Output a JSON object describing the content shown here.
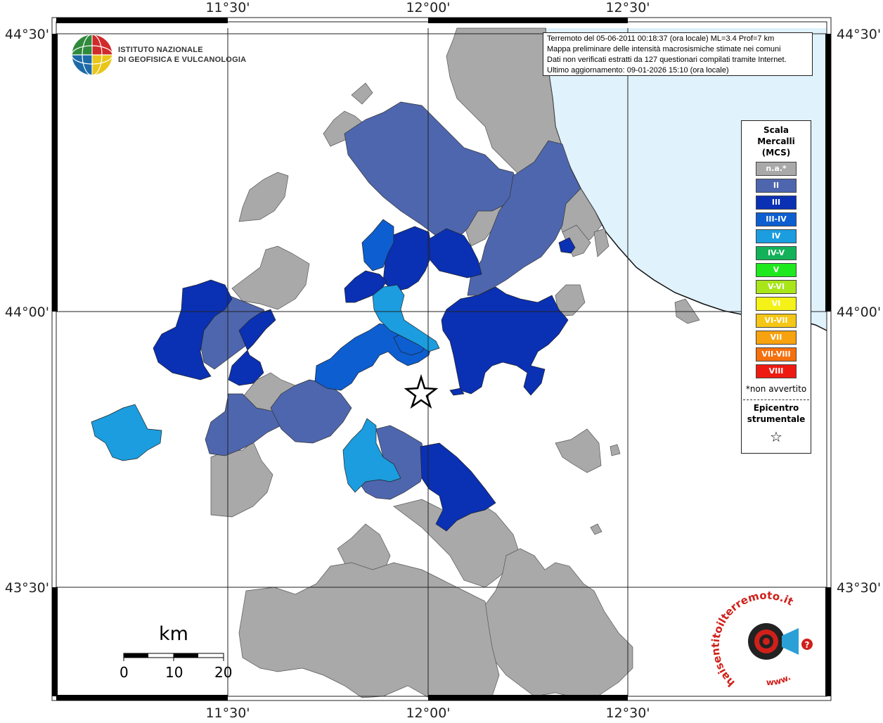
{
  "map": {
    "coords": {
      "top": [
        "11°30'",
        "12°00'",
        "12°30'"
      ],
      "bottom": [
        "11°30'",
        "12°00'",
        "12°30'"
      ],
      "left": [
        "44°30'",
        "44°00'",
        "43°30'"
      ],
      "right": [
        "44°30'",
        "44°00'",
        "43°30'"
      ]
    },
    "colors": {
      "sea": "#e0f2fc",
      "coast": "#111111",
      "na": "#a9a9a9",
      "II": "#4e66ae",
      "III": "#0a30b4",
      "III-IV": "#0d5ed0",
      "IV": "#1b9ddf"
    }
  },
  "header": {
    "institute_line1": "ISTITUTO NAZIONALE",
    "institute_line2": "DI GEOFISICA E VULCANOLOGIA",
    "info_lines": [
      "Terremoto del 05-06-2011 00:18:37 (ora locale) ML=3.4 Prof=7 km",
      "Mappa preliminare delle intensità macrosismiche stimate nei comuni",
      "Dati non verificati estratti da 127 questionari compilati tramite Internet.",
      "Ultimo aggiornamento: 09-01-2026 15:10 (ora locale)"
    ]
  },
  "legend": {
    "title_lines": [
      "Scala",
      "Mercalli",
      "(MCS)"
    ],
    "items": [
      {
        "label": "n.a.*",
        "color": "#a9a9a9"
      },
      {
        "label": "II",
        "color": "#4e66ae"
      },
      {
        "label": "III",
        "color": "#0a30b4"
      },
      {
        "label": "III-IV",
        "color": "#0d5ed0"
      },
      {
        "label": "IV",
        "color": "#1b9ddf"
      },
      {
        "label": "IV-V",
        "color": "#13b25a"
      },
      {
        "label": "V",
        "color": "#1ee81e"
      },
      {
        "label": "V-VI",
        "color": "#a8e61a"
      },
      {
        "label": "VI",
        "color": "#f5f218"
      },
      {
        "label": "VI-VII",
        "color": "#f5c615"
      },
      {
        "label": "VII",
        "color": "#f7a20f"
      },
      {
        "label": "VII-VIII",
        "color": "#f5700e"
      },
      {
        "label": "VIII",
        "color": "#ee1a12"
      }
    ],
    "note": "*non avvertito",
    "epicenter_lines": [
      "Epicentro",
      "strumentale"
    ],
    "star": "☆"
  },
  "scalebar": {
    "unit": "km",
    "ticks": [
      "0",
      "10",
      "20"
    ]
  },
  "hsi_logo": {
    "text_main": "haisentitoilterremoto.it",
    "text_www": "www.",
    "question": "?"
  }
}
